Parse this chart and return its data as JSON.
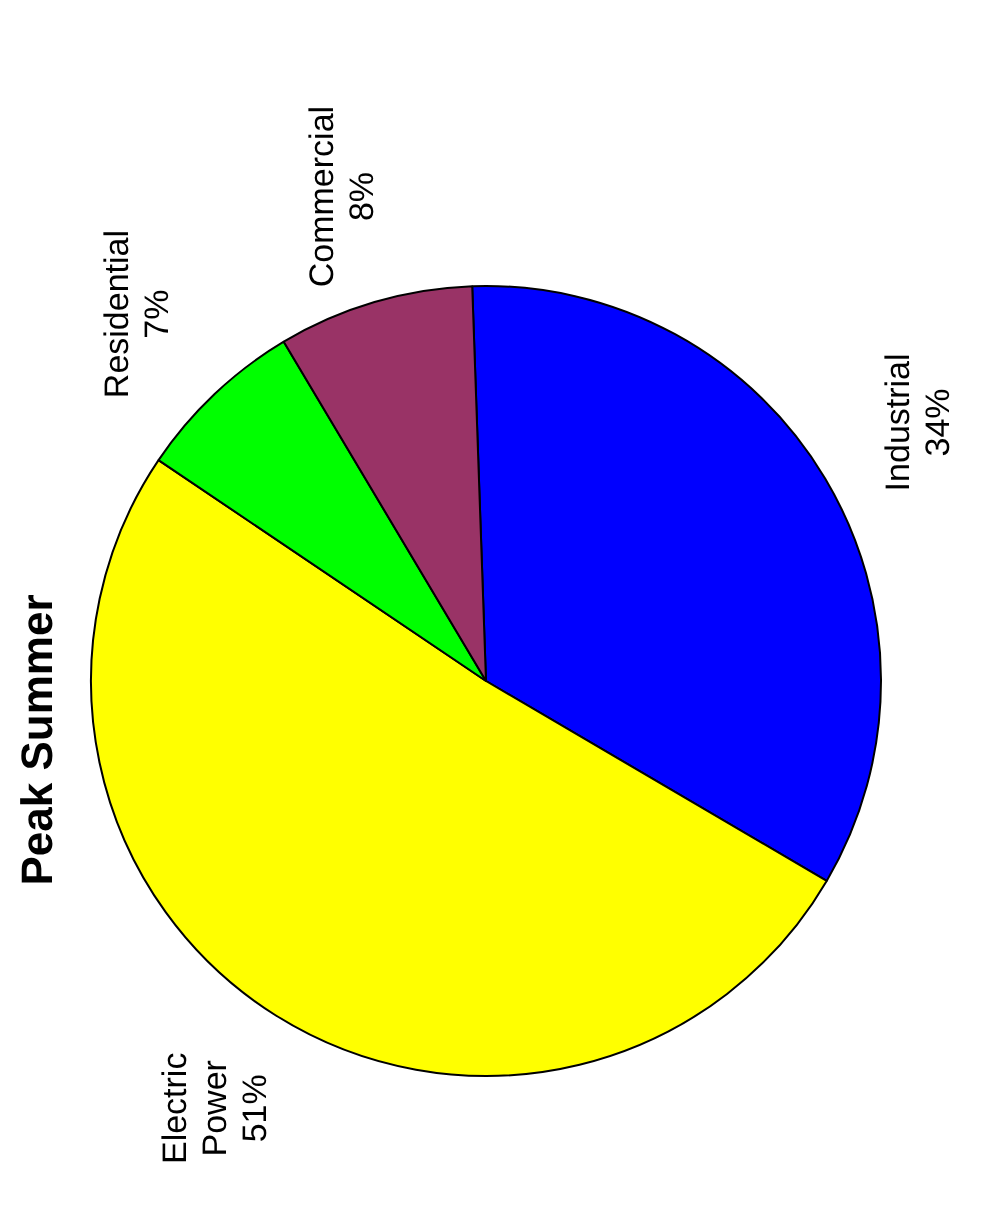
{
  "chart_data": {
    "type": "pie",
    "title": "Peak Summer",
    "categories": [
      "Industrial",
      "Electric Power",
      "Residential",
      "Commercial"
    ],
    "values": [
      34,
      51,
      7,
      8
    ],
    "value_labels": [
      "34%",
      "51%",
      "7%",
      "8%"
    ],
    "colors": [
      "#0000ff",
      "#ffff00",
      "#00ff00",
      "#993366"
    ],
    "legend": false
  }
}
